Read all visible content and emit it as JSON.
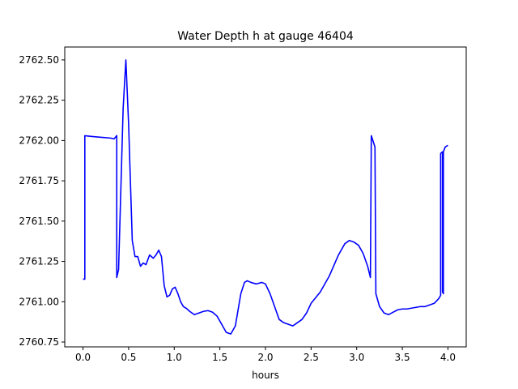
{
  "chart_data": {
    "type": "line",
    "title": "Water Depth h at gauge 46404",
    "xlabel": "hours",
    "ylabel": "",
    "xlim": [
      -0.2,
      4.2
    ],
    "ylim": [
      2760.72,
      2762.58
    ],
    "xticks": [
      0.0,
      0.5,
      1.0,
      1.5,
      2.0,
      2.5,
      3.0,
      3.5,
      4.0
    ],
    "xtick_labels": [
      "0.0",
      "0.5",
      "1.0",
      "1.5",
      "2.0",
      "2.5",
      "3.0",
      "3.5",
      "4.0"
    ],
    "yticks": [
      2760.75,
      2761.0,
      2761.25,
      2761.5,
      2761.75,
      2762.0,
      2762.25,
      2762.5
    ],
    "ytick_labels": [
      "2760.75",
      "2761.00",
      "2761.25",
      "2761.50",
      "2761.75",
      "2762.00",
      "2762.25",
      "2762.50"
    ],
    "grid": false,
    "series": [
      {
        "color": "#0000ff",
        "x": [
          0.0,
          0.02,
          0.02,
          0.1,
          0.2,
          0.3,
          0.34,
          0.37,
          0.37,
          0.39,
          0.41,
          0.44,
          0.47,
          0.5,
          0.54,
          0.57,
          0.6,
          0.63,
          0.66,
          0.69,
          0.73,
          0.77,
          0.8,
          0.83,
          0.86,
          0.89,
          0.92,
          0.95,
          0.98,
          1.01,
          1.04,
          1.07,
          1.1,
          1.13,
          1.17,
          1.22,
          1.27,
          1.32,
          1.37,
          1.42,
          1.47,
          1.52,
          1.57,
          1.62,
          1.67,
          1.7,
          1.73,
          1.77,
          1.8,
          1.84,
          1.9,
          1.96,
          2.0,
          2.05,
          2.1,
          2.15,
          2.2,
          2.25,
          2.3,
          2.35,
          2.4,
          2.45,
          2.5,
          2.6,
          2.7,
          2.8,
          2.87,
          2.92,
          2.97,
          3.02,
          3.07,
          3.12,
          3.15,
          3.16,
          3.16,
          3.2,
          3.21,
          3.21,
          3.25,
          3.3,
          3.35,
          3.4,
          3.45,
          3.5,
          3.55,
          3.6,
          3.65,
          3.7,
          3.75,
          3.8,
          3.85,
          3.9,
          3.92,
          3.92,
          3.94,
          3.94,
          3.95,
          3.95,
          3.97,
          4.0
        ],
        "y": [
          2761.14,
          2761.14,
          2762.03,
          2762.025,
          2762.02,
          2762.015,
          2762.01,
          2762.03,
          2761.15,
          2761.2,
          2761.6,
          2762.2,
          2762.5,
          2762.1,
          2761.38,
          2761.28,
          2761.28,
          2761.22,
          2761.24,
          2761.23,
          2761.29,
          2761.27,
          2761.29,
          2761.32,
          2761.28,
          2761.1,
          2761.03,
          2761.04,
          2761.08,
          2761.09,
          2761.05,
          2761.0,
          2760.97,
          2760.96,
          2760.94,
          2760.92,
          2760.93,
          2760.94,
          2760.945,
          2760.935,
          2760.91,
          2760.86,
          2760.81,
          2760.8,
          2760.85,
          2760.95,
          2761.05,
          2761.12,
          2761.13,
          2761.12,
          2761.11,
          2761.12,
          2761.11,
          2761.05,
          2760.97,
          2760.89,
          2760.87,
          2760.86,
          2760.85,
          2760.87,
          2760.89,
          2760.93,
          2760.99,
          2761.06,
          2761.16,
          2761.29,
          2761.36,
          2761.38,
          2761.37,
          2761.35,
          2761.3,
          2761.22,
          2761.15,
          2762.03,
          2762.03,
          2761.96,
          2761.05,
          2761.05,
          2760.97,
          2760.93,
          2760.92,
          2760.935,
          2760.95,
          2760.955,
          2760.955,
          2760.96,
          2760.965,
          2760.97,
          2760.97,
          2760.98,
          2760.99,
          2761.02,
          2761.04,
          2761.92,
          2761.93,
          2761.06,
          2761.05,
          2761.93,
          2761.96,
          2761.97
        ]
      }
    ]
  }
}
